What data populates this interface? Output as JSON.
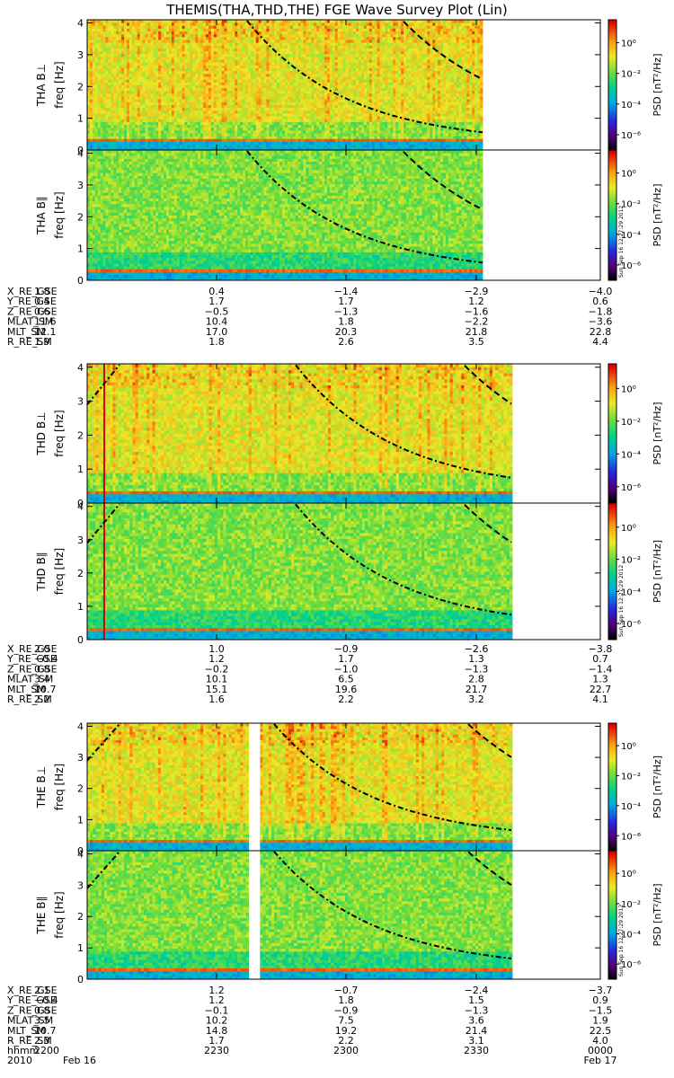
{
  "title": "THEMIS(THA,THD,THE) FGE Wave Survey Plot (Lin)",
  "time_axis": {
    "ticks": [
      "2200",
      "2230",
      "2300",
      "2330",
      "0000"
    ],
    "row_label": "hhmm",
    "date_row": {
      "label": "2010",
      "start": "Feb 16",
      "end": "Feb 17"
    }
  },
  "colorbar": {
    "label": "PSD [nT²/Hz]",
    "ticks": [
      "10⁰",
      "10⁻²",
      "10⁻⁴",
      "10⁻⁶"
    ],
    "log_range": [
      -7,
      1.5
    ]
  },
  "panel_common": {
    "ylabel": "freq [Hz]",
    "yticks": [
      "0",
      "1",
      "2",
      "3",
      "4"
    ],
    "ylim": [
      0,
      4.1
    ]
  },
  "stamp": "Sun Sep 16 12:27:29 2012",
  "probes": [
    {
      "panels": [
        {
          "label": "THA B⊥",
          "comp": "perp"
        },
        {
          "label": "THA B∥",
          "comp": "par"
        }
      ],
      "ephemeris": [
        {
          "name": "X_RE_GSE",
          "values": [
            "1.8",
            "0.4",
            "−1.4",
            "−2.9",
            "−4.0"
          ]
        },
        {
          "name": "Y_RE_GSE",
          "values": [
            "0.4",
            "1.7",
            "1.7",
            "1.2",
            "0.6"
          ]
        },
        {
          "name": "Z_RE_GSE",
          "values": [
            "0.6",
            "−0.5",
            "−1.3",
            "−1.6",
            "−1.8"
          ]
        },
        {
          "name": "MLAT_SM",
          "values": [
            "11.6",
            "10.4",
            "1.8",
            "−2.2",
            "−3.6"
          ]
        },
        {
          "name": "MLT_SM",
          "values": [
            "12.1",
            "17.0",
            "20.3",
            "21.8",
            "22.8"
          ]
        },
        {
          "name": "R_RE_SM",
          "values": [
            "1.9",
            "1.8",
            "2.6",
            "3.5",
            "4.4"
          ]
        }
      ]
    },
    {
      "panels": [
        {
          "label": "THD B⊥",
          "comp": "perp"
        },
        {
          "label": "THD B∥",
          "comp": "par"
        }
      ],
      "ephemeris": [
        {
          "name": "X_RE_GSE",
          "values": [
            "2.0",
            "1.0",
            "−0.9",
            "−2.6",
            "−3.8"
          ]
        },
        {
          "name": "Y_RE_GSE",
          "values": [
            "−0.4",
            "1.2",
            "1.7",
            "1.3",
            "0.7"
          ]
        },
        {
          "name": "Z_RE_GSE",
          "values": [
            "0.8",
            "−0.2",
            "−1.0",
            "−1.3",
            "−1.4"
          ]
        },
        {
          "name": "MLAT_SM",
          "values": [
            "3.4",
            "10.1",
            "6.5",
            "2.8",
            "1.3"
          ]
        },
        {
          "name": "MLT_SM",
          "values": [
            "10.7",
            "15.1",
            "19.6",
            "21.7",
            "22.7"
          ]
        },
        {
          "name": "R_RE_SM",
          "values": [
            "2.2",
            "1.6",
            "2.2",
            "3.2",
            "4.1"
          ]
        }
      ]
    },
    {
      "panels": [
        {
          "label": "THE B⊥",
          "comp": "perp"
        },
        {
          "label": "THE B∥",
          "comp": "par"
        }
      ],
      "ephemeris": [
        {
          "name": "X_RE_GSE",
          "values": [
            "2.1",
            "1.2",
            "−0.7",
            "−2.4",
            "−3.7"
          ]
        },
        {
          "name": "Y_RE_GSE",
          "values": [
            "−0.4",
            "1.2",
            "1.8",
            "1.5",
            "0.9"
          ]
        },
        {
          "name": "Z_RE_GSE",
          "values": [
            "0.8",
            "−0.1",
            "−0.9",
            "−1.3",
            "−1.5"
          ]
        },
        {
          "name": "MLAT_SM",
          "values": [
            "3.5",
            "10.2",
            "7.5",
            "3.6",
            "1.9"
          ]
        },
        {
          "name": "MLT_SM",
          "values": [
            "10.7",
            "14.8",
            "19.2",
            "21.4",
            "22.5"
          ]
        },
        {
          "name": "R_RE_SM",
          "values": [
            "2.3",
            "1.7",
            "2.2",
            "3.1",
            "4.0"
          ]
        }
      ]
    }
  ],
  "chart_data": {
    "type": "heatmap",
    "title": "THEMIS(THA,THD,THE) FGE Wave Survey Plot (Lin)",
    "x": "time (hhmm), 2010 Feb 16 2200 to Feb 17 0000",
    "xticks": [
      "2200",
      "2230",
      "2300",
      "2330",
      "0000"
    ],
    "ylabel": "freq [Hz]",
    "ylim": [
      0,
      4.1
    ],
    "z_label": "PSD [nT²/Hz]",
    "z_scale": "log",
    "z_range": [
      "10⁻⁶",
      "10⁰"
    ],
    "panels": [
      "THA B⊥",
      "THA B∥",
      "THD B⊥",
      "THD B∥",
      "THE B⊥",
      "THE B∥"
    ],
    "overlays": [
      "dash-dot curve",
      "dashed curve"
    ]
  }
}
